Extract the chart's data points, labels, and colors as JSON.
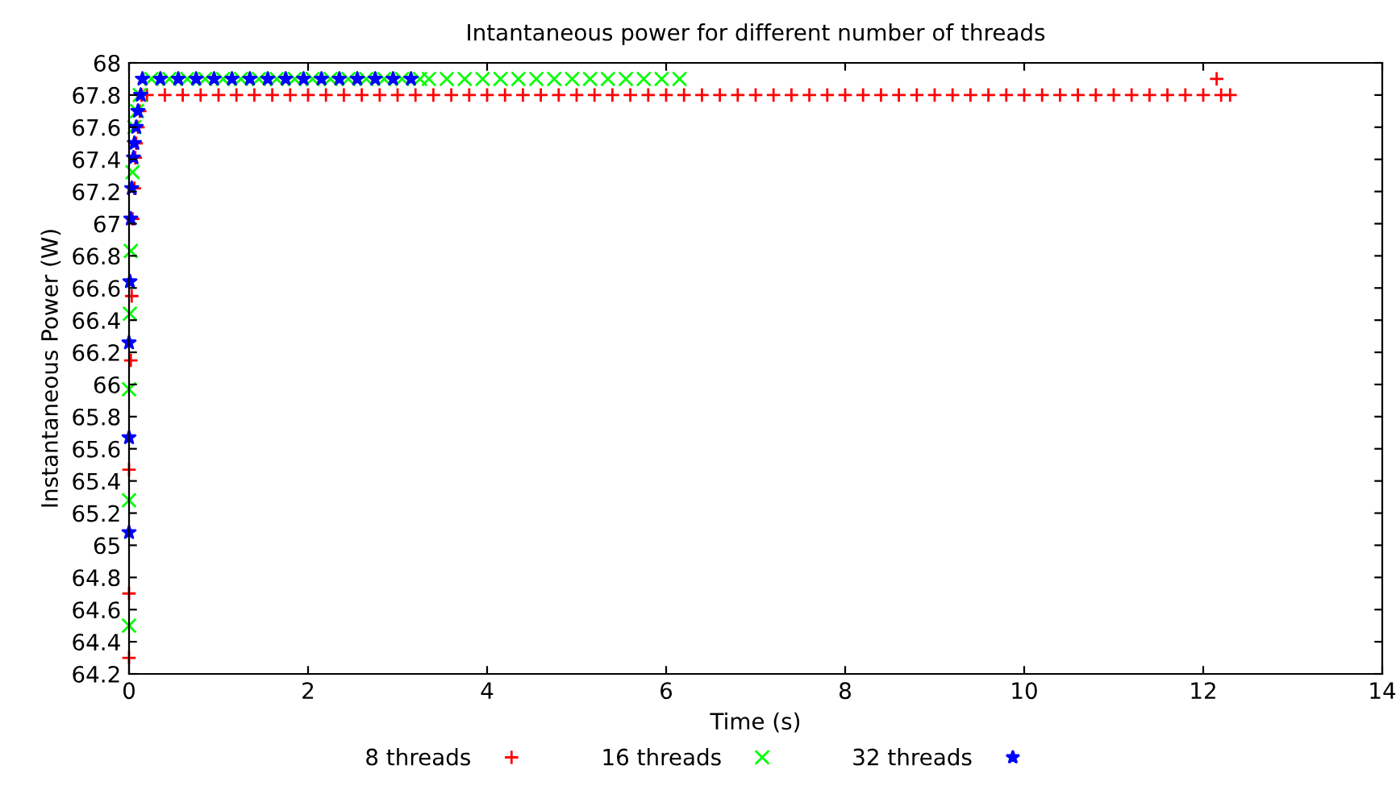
{
  "chart_data": {
    "type": "scatter",
    "title": "Intantaneous power for different number of threads",
    "xlabel": "Time (s)",
    "ylabel": "Instantaneous Power (W)",
    "xlim": [
      0,
      14
    ],
    "xticks": [
      0,
      2,
      4,
      6,
      8,
      10,
      12,
      14
    ],
    "ylim": [
      64.2,
      68
    ],
    "yticks": [
      64.2,
      64.4,
      64.6,
      64.8,
      {
        "value": 65,
        "label": "65"
      },
      65.2,
      65.4,
      65.6,
      65.8,
      {
        "value": 66,
        "label": "66"
      },
      66.2,
      66.4,
      66.6,
      66.8,
      {
        "value": 67,
        "label": "67"
      },
      67.2,
      67.4,
      67.6,
      67.8,
      {
        "value": 68,
        "label": "68"
      }
    ],
    "legend": "bottom",
    "grid": false,
    "series": [
      {
        "name": "8 threads",
        "color": "#ff0000",
        "marker": "plus",
        "x": [
          0.0,
          0.0,
          0.0,
          0.02,
          0.03,
          0.04,
          0.06,
          0.07,
          0.08,
          0.1,
          0.12,
          0.14,
          0.2,
          0.4,
          0.6,
          0.8,
          1.0,
          1.2,
          1.4,
          1.6,
          1.8,
          2.0,
          2.2,
          2.4,
          2.6,
          2.8,
          3.0,
          3.2,
          3.4,
          3.6,
          3.8,
          4.0,
          4.2,
          4.4,
          4.6,
          4.8,
          5.0,
          5.2,
          5.4,
          5.6,
          5.8,
          6.0,
          6.2,
          6.4,
          6.6,
          6.8,
          7.0,
          7.2,
          7.4,
          7.6,
          7.8,
          8.0,
          8.2,
          8.4,
          8.6,
          8.8,
          9.0,
          9.2,
          9.4,
          9.6,
          9.8,
          10.0,
          10.2,
          10.4,
          10.6,
          10.8,
          11.0,
          11.2,
          11.4,
          11.6,
          11.8,
          12.0,
          12.2,
          12.3,
          12.15
        ],
        "values": [
          64.3,
          64.7,
          65.47,
          66.15,
          66.55,
          67.03,
          67.22,
          67.41,
          67.5,
          67.6,
          67.7,
          67.8,
          67.8,
          67.8,
          67.8,
          67.8,
          67.8,
          67.8,
          67.8,
          67.8,
          67.8,
          67.8,
          67.8,
          67.8,
          67.8,
          67.8,
          67.8,
          67.8,
          67.8,
          67.8,
          67.8,
          67.8,
          67.8,
          67.8,
          67.8,
          67.8,
          67.8,
          67.8,
          67.8,
          67.8,
          67.8,
          67.8,
          67.8,
          67.8,
          67.8,
          67.8,
          67.8,
          67.8,
          67.8,
          67.8,
          67.8,
          67.8,
          67.8,
          67.8,
          67.8,
          67.8,
          67.8,
          67.8,
          67.8,
          67.8,
          67.8,
          67.8,
          67.8,
          67.8,
          67.8,
          67.8,
          67.8,
          67.8,
          67.8,
          67.8,
          67.8,
          67.8,
          67.8,
          67.8,
          67.9
        ]
      },
      {
        "name": "16 threads",
        "color": "#00ff00",
        "marker": "cross",
        "x": [
          0.0,
          0.0,
          0.0,
          0.01,
          0.02,
          0.04,
          0.06,
          0.09,
          0.12,
          0.25,
          0.45,
          0.65,
          0.85,
          1.05,
          1.25,
          1.45,
          1.65,
          1.85,
          2.05,
          2.25,
          2.45,
          2.65,
          2.85,
          3.05,
          3.25,
          3.35,
          3.55,
          3.75,
          3.95,
          4.15,
          4.35,
          4.55,
          4.75,
          4.95,
          5.15,
          5.35,
          5.55,
          5.75,
          5.95,
          6.15
        ],
        "values": [
          64.5,
          65.28,
          65.97,
          66.44,
          66.83,
          67.32,
          67.6,
          67.7,
          67.8,
          67.9,
          67.9,
          67.9,
          67.9,
          67.9,
          67.9,
          67.9,
          67.9,
          67.9,
          67.9,
          67.9,
          67.9,
          67.9,
          67.9,
          67.9,
          67.9,
          67.9,
          67.9,
          67.9,
          67.9,
          67.9,
          67.9,
          67.9,
          67.9,
          67.9,
          67.9,
          67.9,
          67.9,
          67.9,
          67.9,
          67.9
        ]
      },
      {
        "name": "32 threads",
        "color": "#0000ff",
        "marker": "star",
        "x": [
          0.0,
          0.0,
          0.0,
          0.01,
          0.02,
          0.03,
          0.05,
          0.06,
          0.08,
          0.1,
          0.13,
          0.15,
          0.35,
          0.55,
          0.75,
          0.95,
          1.15,
          1.35,
          1.55,
          1.75,
          1.95,
          2.15,
          2.35,
          2.55,
          2.75,
          2.95,
          3.15
        ],
        "values": [
          65.08,
          65.67,
          66.26,
          66.64,
          67.03,
          67.22,
          67.41,
          67.5,
          67.6,
          67.7,
          67.8,
          67.9,
          67.9,
          67.9,
          67.9,
          67.9,
          67.9,
          67.9,
          67.9,
          67.9,
          67.9,
          67.9,
          67.9,
          67.9,
          67.9,
          67.9,
          67.9
        ]
      }
    ]
  }
}
